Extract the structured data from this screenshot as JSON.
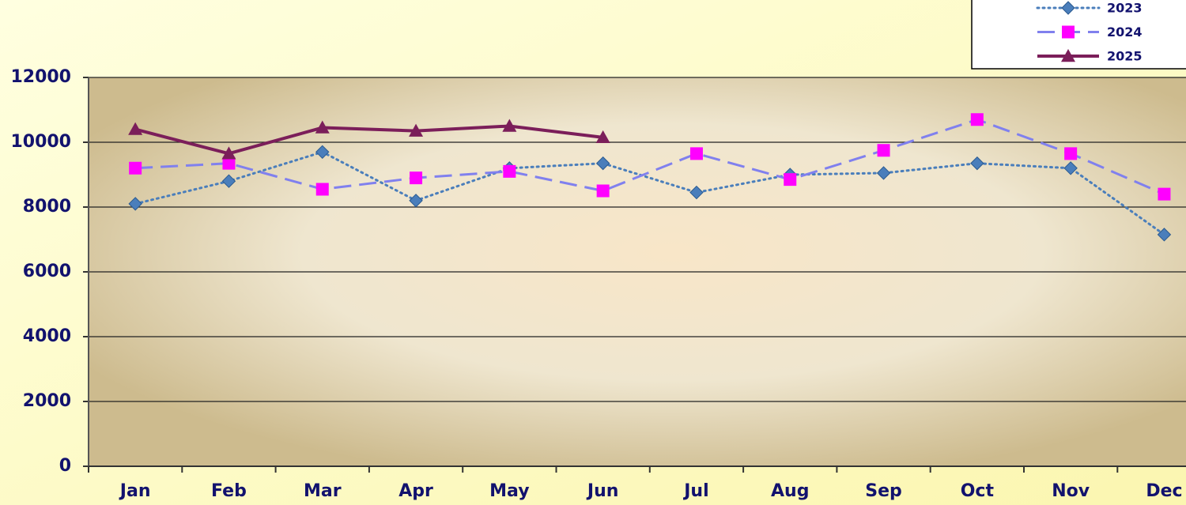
{
  "chart_data": {
    "type": "line",
    "categories": [
      "Jan",
      "Feb",
      "Mar",
      "Apr",
      "May",
      "Jun",
      "Jul",
      "Aug",
      "Sep",
      "Oct",
      "Nov",
      "Dec"
    ],
    "series": [
      {
        "name": "2023",
        "color": "#4a7ebb",
        "marker": "diamond",
        "dash": "dotted",
        "values": [
          8100,
          8800,
          9700,
          8200,
          9200,
          9350,
          8450,
          9000,
          9050,
          9350,
          9200,
          7150
        ]
      },
      {
        "name": "2024",
        "color": "#ff00ff",
        "line_color": "#8080ee",
        "marker": "square",
        "dash": "dashed",
        "values": [
          9200,
          9350,
          8550,
          8900,
          9100,
          8500,
          9650,
          8850,
          9750,
          10700,
          9650,
          8400
        ]
      },
      {
        "name": "2025",
        "color": "#7b1e5a",
        "marker": "triangle",
        "dash": "solid",
        "values": [
          10400,
          9650,
          10450,
          10350,
          10500,
          10150,
          null,
          null,
          null,
          null,
          null,
          null
        ]
      }
    ],
    "ylim": [
      0,
      12000
    ],
    "yticks": [
      0,
      2000,
      4000,
      6000,
      8000,
      10000,
      12000
    ],
    "grid": true,
    "legend": "top-right"
  }
}
